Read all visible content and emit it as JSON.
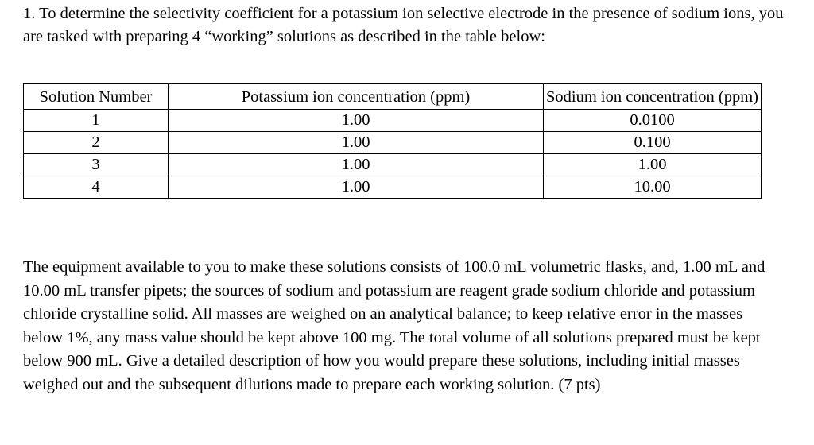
{
  "question": {
    "intro": "1.  To determine the selectivity coefficient for a potassium ion selective electrode in the presence of sodium ions, you are tasked with preparing 4 “working” solutions as described in the table below:",
    "table": {
      "headers": [
        "Solution Number",
        "Potassium ion concentration (ppm)",
        "Sodium ion concentration (ppm)"
      ],
      "rows": [
        [
          "1",
          "1.00",
          "0.0100"
        ],
        [
          "2",
          "1.00",
          "0.100"
        ],
        [
          "3",
          "1.00",
          "1.00"
        ],
        [
          "4",
          "1.00",
          "10.00"
        ]
      ]
    },
    "body": "The equipment available to you to make these solutions consists of 100.0 mL volumetric flasks, and, 1.00 mL and 10.00 mL transfer pipets; the sources of sodium and potassium are reagent grade sodium chloride and potassium chloride crystalline solid.  All masses are weighed on an analytical balance; to keep relative error in the masses below 1%, any mass value should be kept above 100 mg.  The total volume of all solutions prepared must be kept below 900 mL.  Give a detailed description of how you would prepare these solutions, including initial masses weighed out and the subsequent dilutions made to prepare each working solution. (7 pts)"
  }
}
